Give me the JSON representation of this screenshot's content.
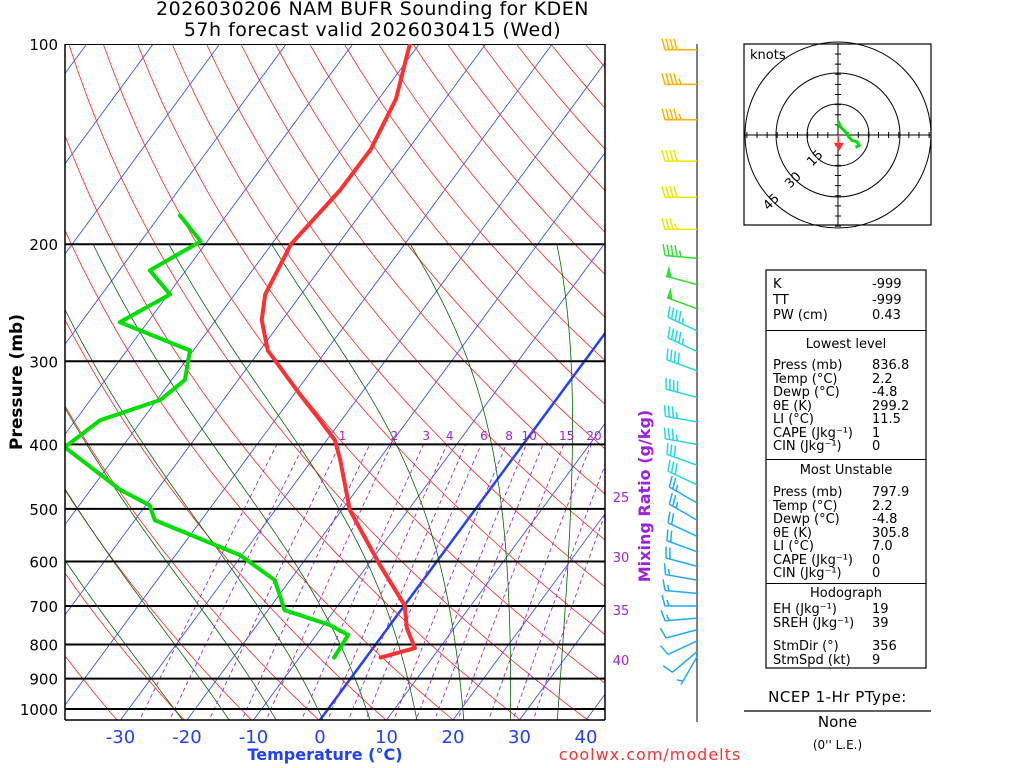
{
  "title": {
    "line1": "2026030206 NAM BUFR Sounding for KDEN",
    "line2": "57h forecast valid 2026030415 (Wed)"
  },
  "chart_data": {
    "type": "line",
    "subtype": "skew-T log-P",
    "xlabel": "Temperature (°C)",
    "ylabel": "Pressure (mb)",
    "secondary_label": "Mixing Ratio (g/kg)",
    "pressure_ticks": [
      100,
      200,
      300,
      400,
      500,
      600,
      700,
      800,
      900,
      1000
    ],
    "temperature_ticks": [
      -30,
      -20,
      -10,
      0,
      10,
      20,
      30,
      40
    ],
    "ylim": [
      1040,
      100
    ],
    "mixing_ratio_labels": [
      1,
      2,
      3,
      4,
      6,
      8,
      10,
      15,
      20
    ],
    "right_labels": [
      25,
      30,
      35,
      40
    ],
    "series": [
      {
        "name": "Temperature",
        "color": "#ff3030",
        "points": [
          [
            837,
            2.2
          ],
          [
            810,
            6.3
          ],
          [
            756,
            2.9
          ],
          [
            698,
            0.0
          ],
          [
            607,
            -8.2
          ],
          [
            502,
            -18.8
          ],
          [
            422,
            -25.8
          ],
          [
            394,
            -28.8
          ],
          [
            368,
            -33.2
          ],
          [
            337,
            -39.0
          ],
          [
            289,
            -48.8
          ],
          [
            260,
            -53.1
          ],
          [
            238,
            -55.4
          ],
          [
            200,
            -57.1
          ],
          [
            166,
            -55.7
          ],
          [
            144,
            -55.6
          ],
          [
            121,
            -57.4
          ],
          [
            100,
            -61.4
          ]
        ]
      },
      {
        "name": "Dewpoint",
        "color": "#00dd00",
        "points": [
          [
            837,
            -4.8
          ],
          [
            774,
            -5.2
          ],
          [
            748,
            -9.0
          ],
          [
            710,
            -17.5
          ],
          [
            640,
            -22.3
          ],
          [
            587,
            -30.3
          ],
          [
            520,
            -47.0
          ],
          [
            494,
            -49.4
          ],
          [
            468,
            -55.6
          ],
          [
            404,
            -68.6
          ],
          [
            368,
            -66.3
          ],
          [
            343,
            -59.5
          ],
          [
            320,
            -58.0
          ],
          [
            289,
            -60.5
          ],
          [
            262,
            -74.2
          ],
          [
            238,
            -69.7
          ],
          [
            219,
            -75.4
          ],
          [
            198,
            -71.0
          ],
          [
            181,
            -77.0
          ]
        ]
      }
    ],
    "wind_barbs": [
      [
        102,
        270,
        40
      ],
      [
        115,
        270,
        45
      ],
      [
        130,
        270,
        45
      ],
      [
        150,
        270,
        40
      ],
      [
        170,
        270,
        40
      ],
      [
        190,
        270,
        35
      ],
      [
        210,
        275,
        45
      ],
      [
        230,
        285,
        50
      ],
      [
        250,
        290,
        50
      ],
      [
        270,
        295,
        45
      ],
      [
        290,
        295,
        45
      ],
      [
        310,
        290,
        40
      ],
      [
        340,
        285,
        40
      ],
      [
        370,
        280,
        35
      ],
      [
        400,
        280,
        35
      ],
      [
        430,
        290,
        30
      ],
      [
        460,
        295,
        30
      ],
      [
        490,
        300,
        25
      ],
      [
        520,
        300,
        25
      ],
      [
        550,
        295,
        20
      ],
      [
        580,
        290,
        20
      ],
      [
        610,
        285,
        20
      ],
      [
        640,
        280,
        15
      ],
      [
        670,
        275,
        15
      ],
      [
        700,
        270,
        15
      ],
      [
        730,
        265,
        15
      ],
      [
        760,
        255,
        10
      ],
      [
        790,
        245,
        10
      ],
      [
        820,
        230,
        10
      ],
      [
        835,
        210,
        5
      ]
    ]
  },
  "hodograph": {
    "unit_label": "knots",
    "ring_labels": [
      "15",
      "30",
      "45"
    ],
    "storm_motion": {
      "dir": 356,
      "spd": 9
    },
    "trace_color": "#00dd00",
    "points": [
      [
        0,
        8
      ],
      [
        1,
        5
      ],
      [
        3,
        3
      ],
      [
        5,
        1
      ],
      [
        6,
        -1
      ],
      [
        8,
        -3
      ],
      [
        11,
        -4
      ],
      [
        12,
        -6
      ],
      [
        10,
        -7
      ]
    ]
  },
  "panel": {
    "indices": [
      {
        "label": "K",
        "value": "-999"
      },
      {
        "label": "TT",
        "value": "-999"
      },
      {
        "label": "PW (cm)",
        "value": "0.43"
      }
    ],
    "lowest_title": "Lowest level",
    "lowest": [
      {
        "label": "Press (mb)",
        "value": "836.8"
      },
      {
        "label": "Temp (°C)",
        "value": "2.2"
      },
      {
        "label": "Dewp (°C)",
        "value": "-4.8"
      },
      {
        "label": "θE (K)",
        "value": "299.2"
      },
      {
        "label": "LI (°C)",
        "value": "11.5"
      },
      {
        "label": "CAPE (Jkg⁻¹)",
        "value": "1"
      },
      {
        "label": "CIN (Jkg⁻¹)",
        "value": "0"
      }
    ],
    "mu_title": "Most Unstable",
    "mu": [
      {
        "label": "Press (mb)",
        "value": "797.9"
      },
      {
        "label": "Temp (°C)",
        "value": "2.2"
      },
      {
        "label": "Dewp (°C)",
        "value": "-4.8"
      },
      {
        "label": "θE (K)",
        "value": "305.8"
      },
      {
        "label": "LI (°C)",
        "value": "7.0"
      },
      {
        "label": "CAPE (Jkg⁻¹)",
        "value": "0"
      },
      {
        "label": "CIN (Jkg⁻¹)",
        "value": "0"
      }
    ],
    "hodo_title": "Hodograph",
    "hodo": [
      {
        "label": "EH (Jkg⁻¹)",
        "value": "19"
      },
      {
        "label": "SREH (Jkg⁻¹)",
        "value": "39"
      },
      {
        "label": "StmDir (°)",
        "value": "356"
      },
      {
        "label": "StmSpd (kt)",
        "value": "9"
      }
    ]
  },
  "ptype": {
    "title": "NCEP 1-Hr PType:",
    "value": "None",
    "amount": "(0'' L.E.)"
  },
  "footer": {
    "credit": "coolwx.com/modelts"
  },
  "colors": {
    "isotherm": "#2040ff",
    "dry_adiabat": "#ff2020",
    "moist_adiabat": "#006000",
    "mixing_ratio": "#a020e0",
    "temperature": "#ff3030",
    "dewpoint": "#00dd00"
  }
}
